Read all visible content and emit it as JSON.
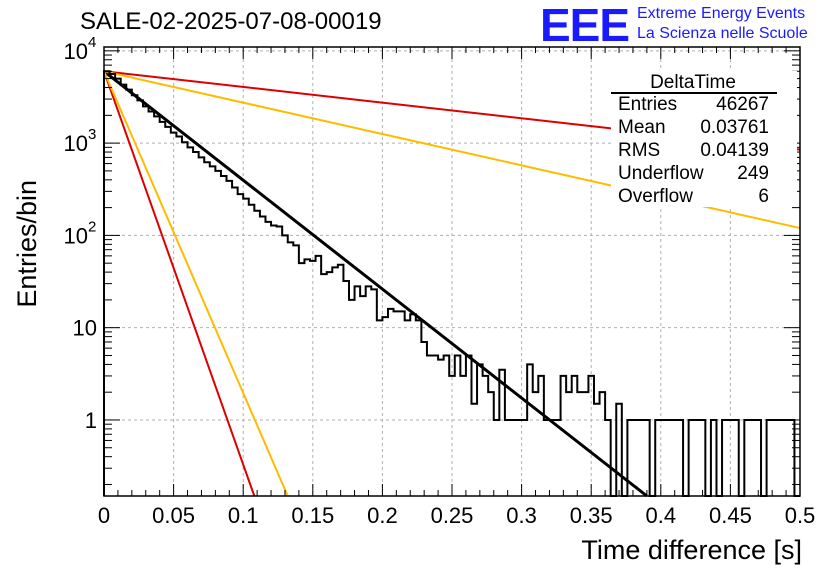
{
  "header": {
    "run_title": "SALE-02-2025-07-08-00019",
    "logo_mark": "EEE",
    "logo_line1": "Extreme Energy Events",
    "logo_line2": "La Scienza nelle Scuole"
  },
  "stats": {
    "name": "DeltaTime",
    "rows": [
      {
        "label": "Entries",
        "value": "46267"
      },
      {
        "label": "Mean",
        "value": "0.03761"
      },
      {
        "label": "RMS",
        "value": "0.04139"
      },
      {
        "label": "Underflow",
        "value": "249"
      },
      {
        "label": "Overflow",
        "value": "6"
      }
    ]
  },
  "colors": {
    "black": "#000000",
    "red": "#dd0000",
    "orange": "#ffbb00",
    "grid": "#b0b0b0",
    "logo": "#1a1aff"
  },
  "chart_data": {
    "type": "line",
    "xlabel": "Time difference [s]",
    "ylabel": "Entries/bin",
    "xlim": [
      0,
      0.5
    ],
    "ylim": [
      0.15,
      11000
    ],
    "yscale": "log",
    "grid": true,
    "x_ticks": [
      {
        "v": 0,
        "label": "0"
      },
      {
        "v": 0.05,
        "label": "0.05"
      },
      {
        "v": 0.1,
        "label": "0.1"
      },
      {
        "v": 0.15,
        "label": "0.15"
      },
      {
        "v": 0.2,
        "label": "0.2"
      },
      {
        "v": 0.25,
        "label": "0.25"
      },
      {
        "v": 0.3,
        "label": "0.3"
      },
      {
        "v": 0.35,
        "label": "0.35"
      },
      {
        "v": 0.4,
        "label": "0.4"
      },
      {
        "v": 0.45,
        "label": "0.45"
      },
      {
        "v": 0.5,
        "label": "0.5"
      }
    ],
    "y_ticks": [
      {
        "v": 1,
        "base": "1",
        "exp": ""
      },
      {
        "v": 10,
        "base": "10",
        "exp": ""
      },
      {
        "v": 100,
        "base": "10",
        "exp": "2"
      },
      {
        "v": 1000,
        "base": "10",
        "exp": "3"
      },
      {
        "v": 10000,
        "base": "10",
        "exp": "4"
      }
    ],
    "histogram": {
      "bin_width": 0.004,
      "values": [
        6000,
        5600,
        5000,
        4300,
        3800,
        3300,
        2900,
        2500,
        2200,
        1950,
        1700,
        1500,
        1300,
        1180,
        1020,
        900,
        800,
        700,
        620,
        560,
        500,
        440,
        390,
        330,
        280,
        250,
        215,
        185,
        160,
        140,
        128,
        125,
        100,
        84,
        78,
        50,
        55,
        53,
        60,
        38,
        40,
        45,
        48,
        32,
        20,
        28,
        22,
        28,
        26,
        12,
        13,
        16,
        15,
        15,
        12,
        14,
        12,
        7,
        5,
        5,
        4.5,
        5,
        3,
        5,
        3,
        5,
        1.5,
        4,
        3,
        2,
        1,
        3.5,
        1,
        1,
        1,
        1,
        4,
        2,
        3,
        1,
        1,
        1,
        3,
        2,
        3,
        2,
        2,
        3,
        1.5,
        2,
        1,
        0.1,
        1.5,
        0.1,
        1,
        1,
        1,
        1,
        0.1,
        1,
        1,
        1,
        1,
        1,
        0.1,
        1,
        1,
        1,
        0.1,
        1,
        0.1,
        1,
        1,
        1,
        0.1,
        1,
        1,
        1,
        0.1,
        1,
        1,
        1,
        1,
        1,
        0.1
      ]
    },
    "series": [
      {
        "color": "black",
        "x": [
          0,
          0.39
        ],
        "y": [
          6000,
          0.15
        ],
        "width": 3.0
      },
      {
        "color": "red",
        "x": [
          0,
          0.108
        ],
        "y": [
          6000,
          0.15
        ],
        "width": 2.0
      },
      {
        "color": "orange",
        "x": [
          0,
          0.132
        ],
        "y": [
          6000,
          0.15
        ],
        "width": 2.0
      },
      {
        "color": "red",
        "x": [
          0,
          0.5
        ],
        "y": [
          6000,
          850
        ],
        "width": 2.0
      },
      {
        "color": "orange",
        "x": [
          0,
          0.5
        ],
        "y": [
          6000,
          120
        ],
        "width": 2.0
      }
    ]
  }
}
